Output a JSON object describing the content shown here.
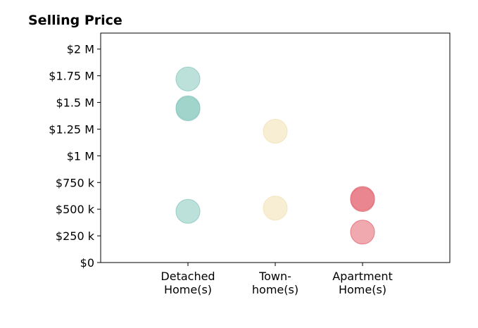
{
  "chart_data": {
    "type": "scatter",
    "title": "Selling Price",
    "xlabel": "",
    "ylabel": "",
    "categories": [
      "Detached\nHome(s)",
      "Town-\nhome(s)",
      "Apartment\nHome(s)"
    ],
    "xlim": [
      -0.5,
      3.5
    ],
    "ylim": [
      0,
      2150000
    ],
    "yticks": [
      0,
      250000,
      500000,
      750000,
      1000000,
      1250000,
      1500000,
      1750000,
      2000000
    ],
    "ytick_labels": [
      "$0",
      "$250 k",
      "$500 k",
      "$750 k",
      "$1 M",
      "$1.25 M",
      "$1.5 M",
      "$1.75 M",
      "$2 M"
    ],
    "grid": false,
    "legend": "none",
    "series": [
      {
        "category": "Detached\nHome(s)",
        "color": "#8fcbc2",
        "points": [
          {
            "x": 0.5,
            "y": 1720000
          },
          {
            "x": 0.5,
            "y": 1450000
          },
          {
            "x": 0.5,
            "y": 1440000
          },
          {
            "x": 0.5,
            "y": 480000
          }
        ]
      },
      {
        "category": "Town-\nhome(s)",
        "color": "#f4e2b8",
        "points": [
          {
            "x": 1.5,
            "y": 1230000
          },
          {
            "x": 1.5,
            "y": 510000
          }
        ]
      },
      {
        "category": "Apartment\nHome(s)",
        "color": "#e46f7a",
        "points": [
          {
            "x": 2.5,
            "y": 600000
          },
          {
            "x": 2.5,
            "y": 590000
          },
          {
            "x": 2.5,
            "y": 285000
          }
        ]
      }
    ]
  }
}
